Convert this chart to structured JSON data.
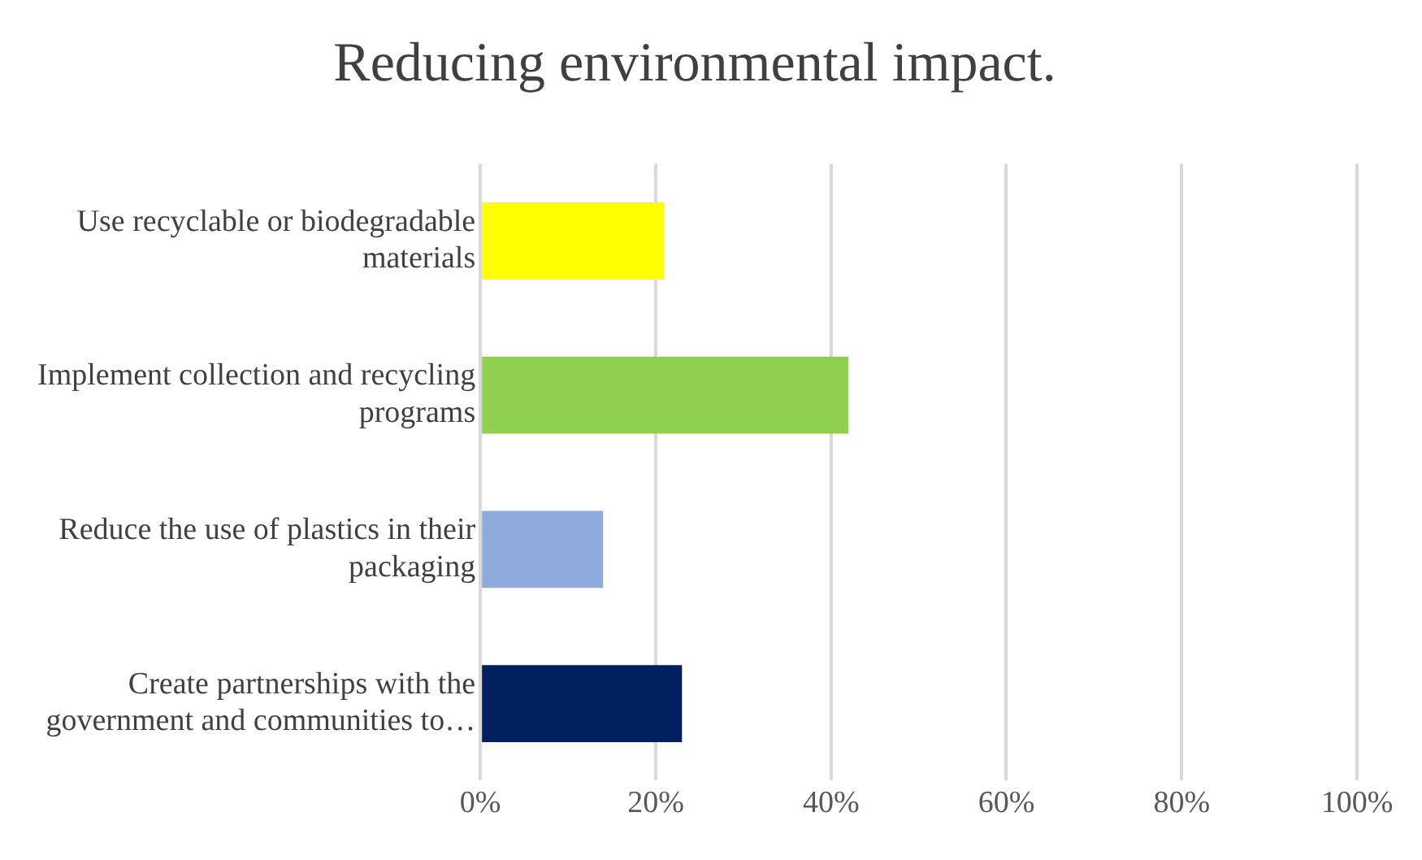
{
  "chart_data": {
    "type": "bar",
    "orientation": "horizontal",
    "title": "Reducing environmental impact.",
    "categories": [
      [
        "Use recyclable or biodegradable",
        "materials"
      ],
      [
        "Implement collection and recycling",
        "programs"
      ],
      [
        "Reduce the use of plastics in their",
        "packaging"
      ],
      [
        "Create partnerships with the",
        "government and communities to…"
      ]
    ],
    "values": [
      0.21,
      0.42,
      0.14,
      0.23
    ],
    "colors": [
      "#ffff00",
      "#8fd14f",
      "#8faadc",
      "#002060"
    ],
    "xlim": [
      0,
      1
    ],
    "xticks": [
      {
        "value": 0,
        "label": "0%"
      },
      {
        "value": 0.2,
        "label": "20%"
      },
      {
        "value": 0.4,
        "label": "40%"
      },
      {
        "value": 0.6,
        "label": "60%"
      },
      {
        "value": 0.8,
        "label": "80%"
      },
      {
        "value": 1,
        "label": "100%"
      }
    ],
    "grid": "x",
    "legend": false
  }
}
